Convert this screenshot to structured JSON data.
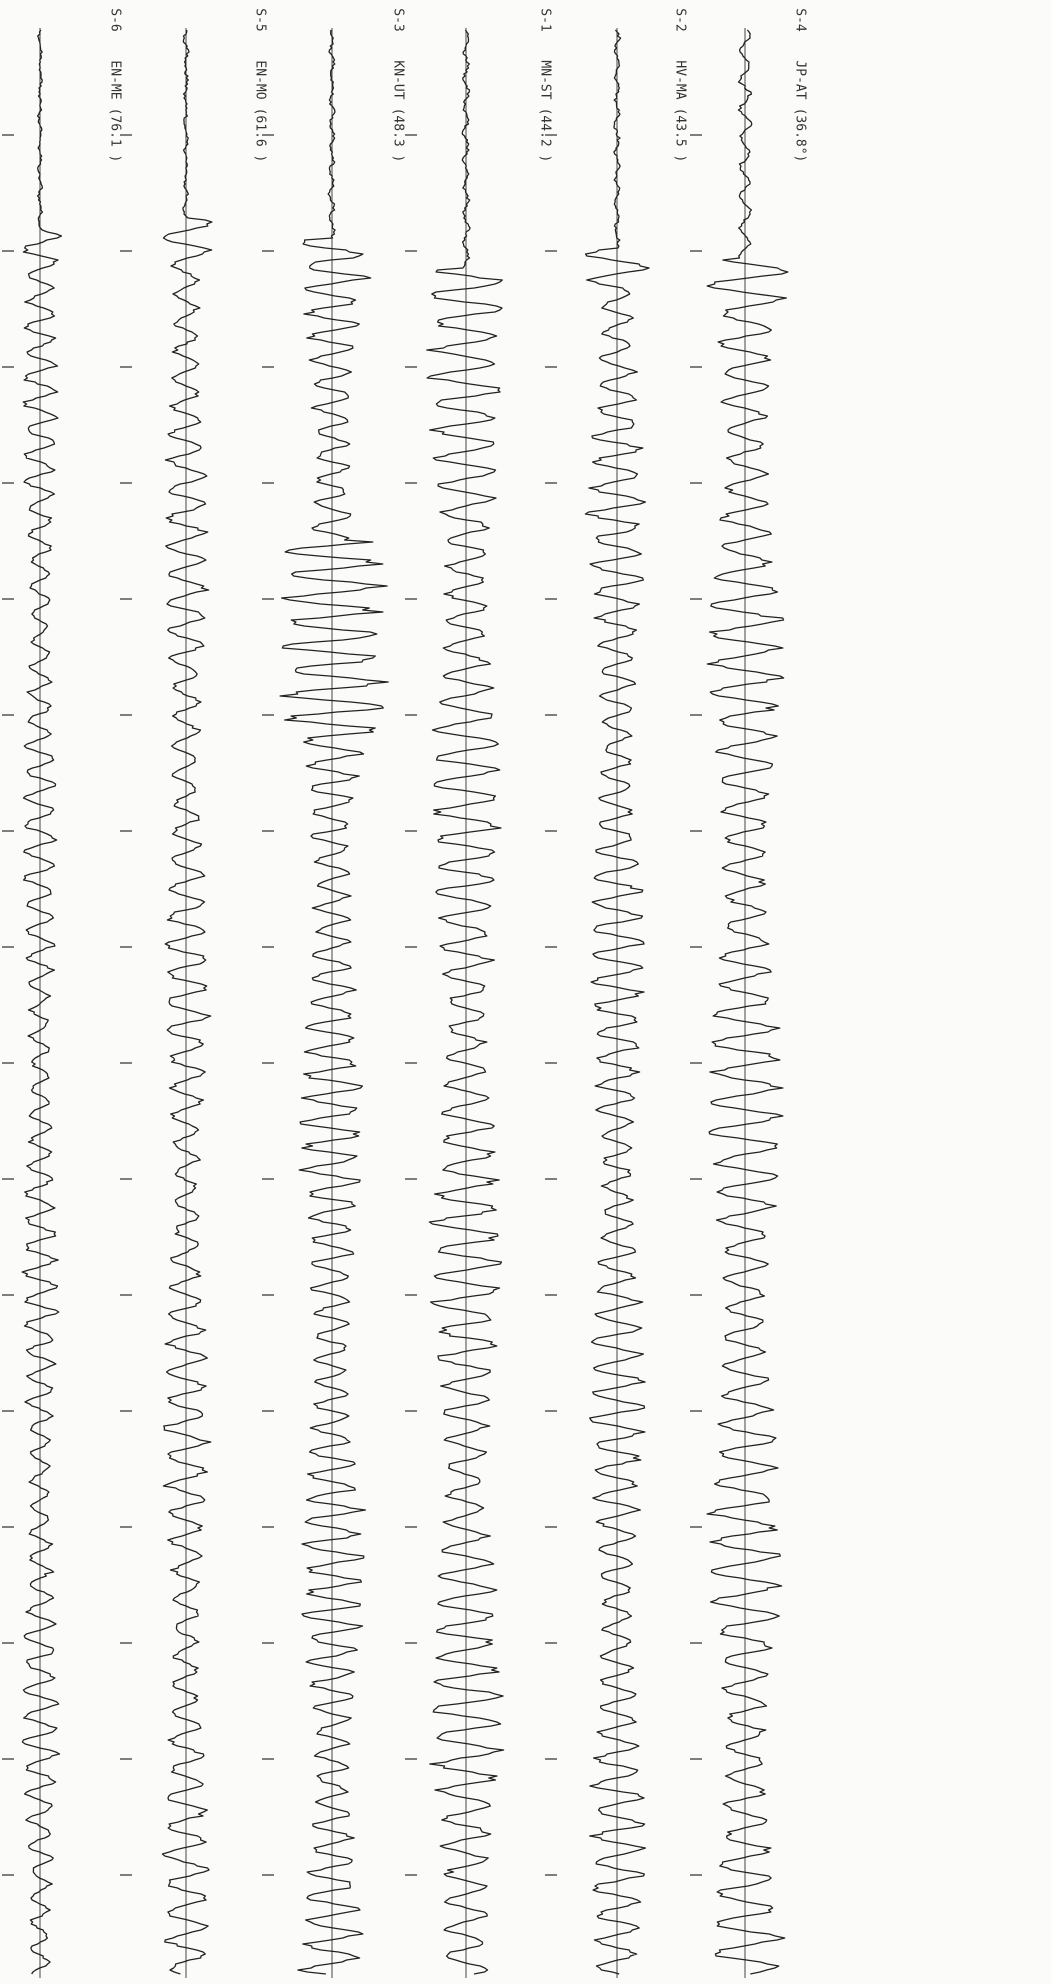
{
  "traces": [
    {
      "station": "S-4",
      "code": "JP-AT",
      "distance": "(36.8°)"
    },
    {
      "station": "S-2",
      "code": "HV-MA",
      "distance": "(43.5 )"
    },
    {
      "station": "S-1",
      "code": "MN-ST",
      "distance": "(44.2 )"
    },
    {
      "station": "S-3",
      "code": "KN-UT",
      "distance": "(48.3 )"
    },
    {
      "station": "S-5",
      "code": "EN-MO",
      "distance": "(61.6 )"
    },
    {
      "station": "S-6",
      "code": "EN-ME",
      "distance": "(76.1 )"
    }
  ]
}
